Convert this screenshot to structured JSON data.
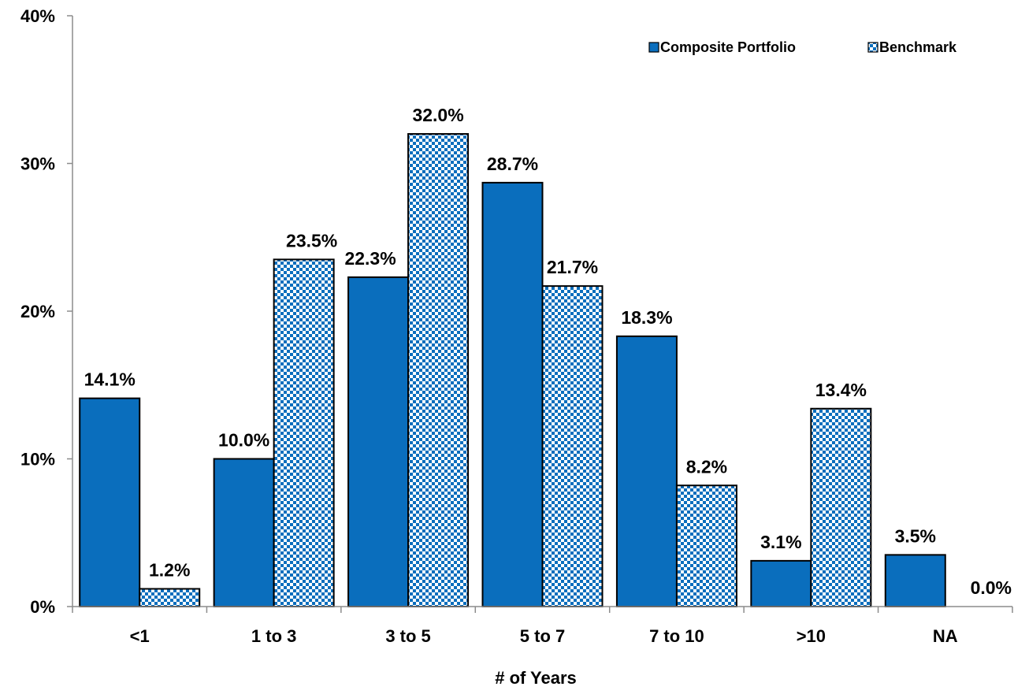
{
  "chart_data": {
    "type": "bar",
    "categories": [
      "<1",
      "1 to 3",
      "3 to 5",
      "5 to 7",
      "7 to 10",
      ">10",
      "NA"
    ],
    "series": [
      {
        "name": "Composite Portfolio",
        "values": [
          14.1,
          10.0,
          22.3,
          28.7,
          18.3,
          3.1,
          3.5
        ],
        "labels": [
          "14.1%",
          "10.0%",
          "22.3%",
          "28.7%",
          "18.3%",
          "3.1%",
          "3.5%"
        ],
        "color": "#0A6EBD",
        "pattern": "solid"
      },
      {
        "name": "Benchmark",
        "values": [
          1.2,
          23.5,
          32.0,
          21.7,
          8.2,
          13.4,
          0.0
        ],
        "labels": [
          "1.2%",
          "23.5%",
          "32.0%",
          "21.7%",
          "8.2%",
          "13.4%",
          "0.0%"
        ],
        "color": "#0A6EBD",
        "pattern": "checkerboard"
      }
    ],
    "xlabel": "# of Years",
    "ylabel": "",
    "ylim": [
      0,
      40
    ],
    "yticks": [
      0,
      10,
      20,
      30,
      40
    ],
    "ytick_labels": [
      "0%",
      "10%",
      "20%",
      "30%",
      "40%"
    ],
    "grid": false,
    "legend_position": "top-right"
  }
}
